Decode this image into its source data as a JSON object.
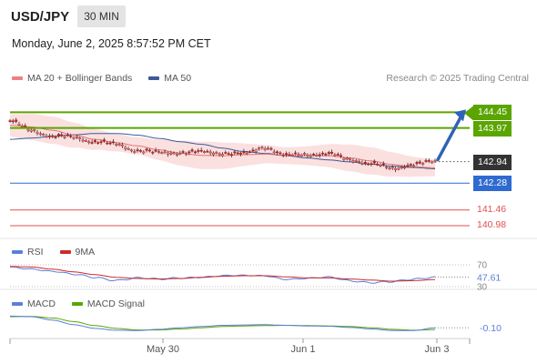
{
  "header": {
    "symbol": "USD/JPY",
    "interval": "30 MIN",
    "datetime": "Monday, June 2, 2025 8:57:52 PM CET"
  },
  "colors": {
    "ma20": "#e57373",
    "bollinger_fill": "#f9d5d5",
    "ma50": "#3c5a9a",
    "candle": "#b22222",
    "resistance": "#5aa500",
    "current": "#333333",
    "support": "#2f6ad0",
    "target": "#e05050",
    "rsi": "#5b7fd8",
    "rsi_9ma": "#cc2b2b",
    "macd": "#5b7fd8",
    "macd_signal": "#5aa500",
    "arrow": "#2f63b5"
  },
  "main_legend": [
    {
      "label": "MA 20 + Bollinger Bands",
      "color": "#f08080"
    },
    {
      "label": "MA 50",
      "color": "#3c5a9a"
    }
  ],
  "attribution": "Research © 2025 Trading Central",
  "chart_data": [
    {
      "type": "line",
      "panel": "price",
      "title": "",
      "x_ticks": [
        "May 30",
        "Jun 1",
        "Jun 3"
      ],
      "ylim": [
        140.7,
        145.1
      ],
      "series": [
        {
          "name": "MA 20 + Bollinger Bands",
          "values": [
            144.05,
            144.0,
            143.9,
            143.75,
            143.62,
            143.52,
            143.42,
            143.3,
            143.2,
            143.13,
            143.12,
            143.15,
            143.17,
            143.12,
            143.12,
            143.12,
            143.05,
            142.96,
            142.85,
            142.78,
            142.75
          ]
        },
        {
          "name": "MA 50",
          "values": [
            143.62,
            143.66,
            143.71,
            143.76,
            143.8,
            143.8,
            143.75,
            143.65,
            143.55,
            143.47,
            143.35,
            143.25,
            143.19,
            143.12,
            143.05,
            142.99,
            142.93,
            142.86,
            142.8,
            142.76,
            142.72
          ]
        },
        {
          "name": "Close",
          "values": [
            144.18,
            143.91,
            143.71,
            143.69,
            143.55,
            143.47,
            143.28,
            143.21,
            143.22,
            143.23,
            143.21,
            143.17,
            143.39,
            143.12,
            143.17,
            143.17,
            143.02,
            142.87,
            142.74,
            142.85,
            142.94
          ]
        }
      ],
      "levels": [
        {
          "value": 144.45,
          "label": "144.45",
          "kind": "resistance"
        },
        {
          "value": 143.97,
          "label": "143.97",
          "kind": "resistance"
        },
        {
          "value": 142.94,
          "label": "142.94",
          "kind": "current"
        },
        {
          "value": 142.28,
          "label": "142.28",
          "kind": "support"
        },
        {
          "value": 141.46,
          "label": "141.46",
          "kind": "target"
        },
        {
          "value": 140.98,
          "label": "140.98",
          "kind": "target"
        }
      ]
    },
    {
      "type": "line",
      "panel": "rsi",
      "legend": [
        "RSI",
        "9MA"
      ],
      "y_ticks": [
        "70",
        "30"
      ],
      "ylim": [
        25,
        75
      ],
      "current_value": "47.61",
      "series": [
        {
          "name": "RSI",
          "values": [
            66,
            63,
            58,
            52,
            47,
            42,
            46,
            43,
            46,
            48,
            50,
            50,
            50,
            44,
            45,
            47,
            41,
            38,
            39,
            43,
            47.61
          ]
        },
        {
          "name": "9MA",
          "values": [
            67,
            66,
            62,
            57,
            52,
            47,
            45,
            44,
            45,
            47,
            49,
            50,
            50,
            48,
            46,
            46,
            44,
            42,
            40,
            41,
            43
          ]
        }
      ]
    },
    {
      "type": "line",
      "panel": "macd",
      "legend": [
        "MACD",
        "MACD Signal"
      ],
      "ylim": [
        -0.45,
        0.35
      ],
      "current_value": "-0.10",
      "series": [
        {
          "name": "MACD",
          "values": [
            0.28,
            0.26,
            0.15,
            0.0,
            -0.12,
            -0.18,
            -0.19,
            -0.15,
            -0.1,
            -0.06,
            -0.02,
            -0.01,
            0.0,
            -0.02,
            -0.04,
            -0.05,
            -0.09,
            -0.14,
            -0.19,
            -0.19,
            -0.1
          ]
        },
        {
          "name": "MACD Signal",
          "values": [
            0.26,
            0.27,
            0.22,
            0.1,
            -0.03,
            -0.12,
            -0.17,
            -0.17,
            -0.14,
            -0.1,
            -0.06,
            -0.04,
            -0.03,
            -0.02,
            -0.03,
            -0.04,
            -0.06,
            -0.1,
            -0.15,
            -0.18,
            -0.16
          ]
        }
      ]
    }
  ]
}
